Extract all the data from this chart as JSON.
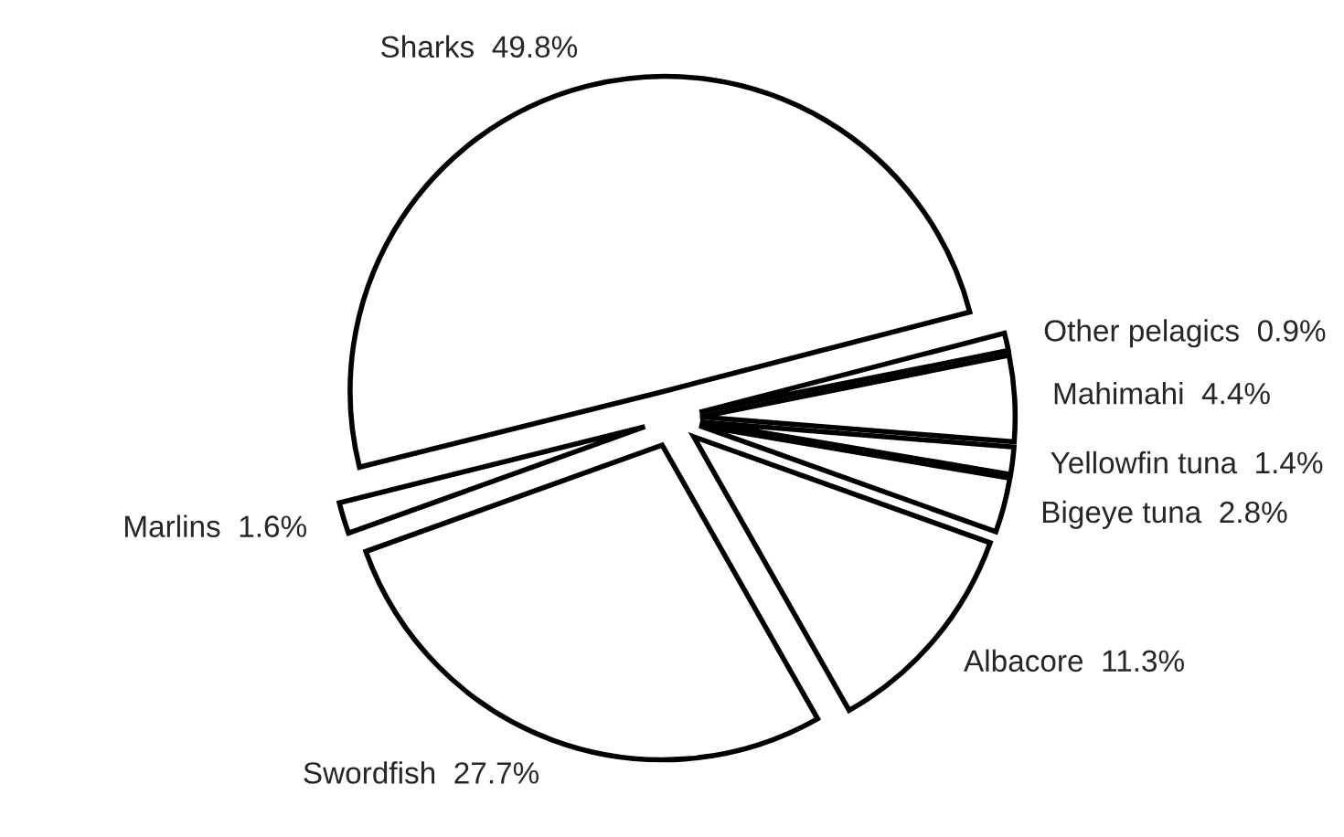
{
  "chart_data": {
    "type": "pie",
    "categories": [
      "Sharks",
      "Other pelagics",
      "Mahimahi",
      "Yellowfin tuna",
      "Bigeye tuna",
      "Albacore",
      "Swordfish",
      "Marlins"
    ],
    "values": [
      49.8,
      0.9,
      4.4,
      1.4,
      2.8,
      11.3,
      27.7,
      1.6
    ],
    "value_labels": [
      "49.8%",
      "0.9%",
      "4.4%",
      "1.4%",
      "2.8%",
      "11.3%",
      "27.7%",
      "1.6%"
    ],
    "colors": [
      "#ffffff",
      "#ffffff",
      "#ffffff",
      "#ffffff",
      "#ffffff",
      "#ffffff",
      "#ffffff",
      "#ffffff"
    ],
    "legend": false
  }
}
